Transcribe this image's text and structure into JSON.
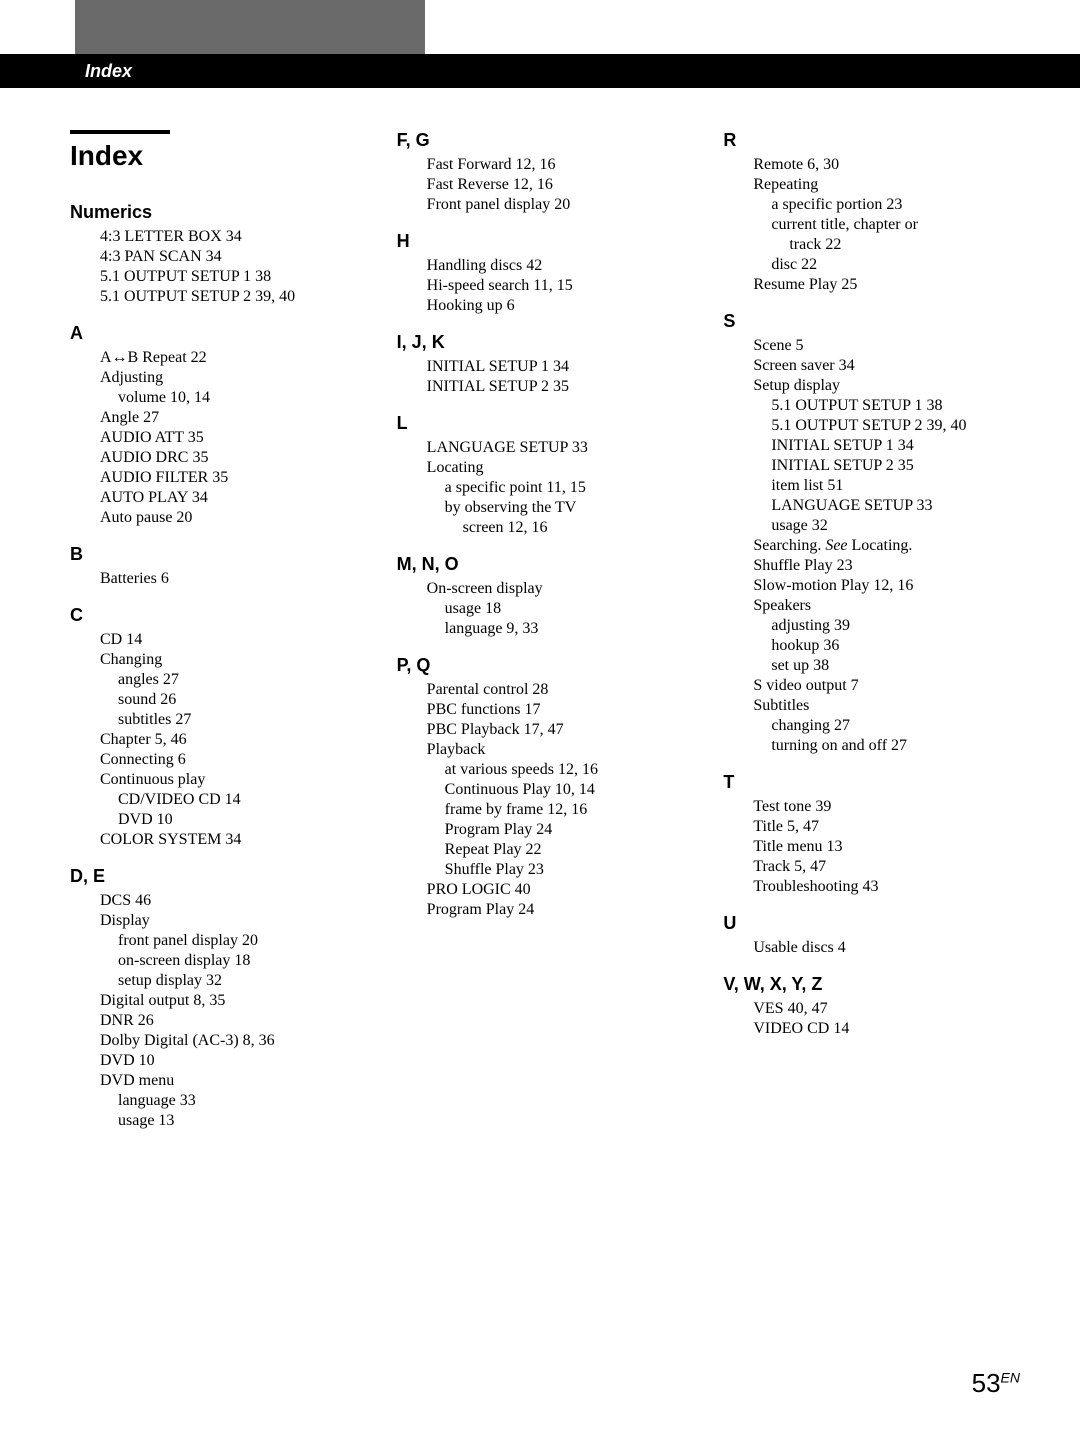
{
  "header_tab": "Index",
  "page_title": "Index",
  "page_number": "53",
  "page_number_suffix": "EN",
  "sections": {
    "Numerics": [
      {
        "t": "4:3 LETTER BOX    34",
        "l": 0
      },
      {
        "t": "4:3 PAN SCAN    34",
        "l": 0
      },
      {
        "t": "5.1 OUTPUT SETUP 1    38",
        "l": 0
      },
      {
        "t": "5.1 OUTPUT SETUP 2    39, 40",
        "l": 0
      }
    ],
    "A": [
      {
        "t": "A↔B Repeat    22",
        "l": 0
      },
      {
        "t": "Adjusting",
        "l": 0
      },
      {
        "t": "volume    10, 14",
        "l": 1
      },
      {
        "t": "Angle    27",
        "l": 0
      },
      {
        "t": "AUDIO ATT    35",
        "l": 0
      },
      {
        "t": "AUDIO DRC    35",
        "l": 0
      },
      {
        "t": "AUDIO FILTER    35",
        "l": 0
      },
      {
        "t": "AUTO PLAY    34",
        "l": 0
      },
      {
        "t": "Auto pause    20",
        "l": 0
      }
    ],
    "B": [
      {
        "t": "Batteries    6",
        "l": 0
      }
    ],
    "C": [
      {
        "t": "CD    14",
        "l": 0
      },
      {
        "t": "Changing",
        "l": 0
      },
      {
        "t": "angles    27",
        "l": 1
      },
      {
        "t": "sound    26",
        "l": 1
      },
      {
        "t": "subtitles    27",
        "l": 1
      },
      {
        "t": "Chapter    5, 46",
        "l": 0
      },
      {
        "t": "Connecting    6",
        "l": 0
      },
      {
        "t": "Continuous play",
        "l": 0
      },
      {
        "t": "CD/VIDEO CD    14",
        "l": 1
      },
      {
        "t": "DVD    10",
        "l": 1
      },
      {
        "t": "COLOR SYSTEM    34",
        "l": 0
      }
    ],
    "D, E": [
      {
        "t": "DCS    46",
        "l": 0
      },
      {
        "t": "Display",
        "l": 0
      },
      {
        "t": "front panel display    20",
        "l": 1
      },
      {
        "t": "on-screen display    18",
        "l": 1
      },
      {
        "t": "setup display    32",
        "l": 1
      },
      {
        "t": "Digital output    8, 35",
        "l": 0
      },
      {
        "t": "DNR    26",
        "l": 0
      },
      {
        "t": "Dolby Digital (AC-3)    8, 36",
        "l": 0
      },
      {
        "t": "DVD    10",
        "l": 0
      },
      {
        "t": "DVD menu",
        "l": 0
      },
      {
        "t": "language    33",
        "l": 1
      },
      {
        "t": "usage    13",
        "l": 1
      }
    ],
    "F, G": [
      {
        "t": "Fast Forward        12, 16",
        "l": 0
      },
      {
        "t": "Fast Reverse        12, 16",
        "l": 0
      },
      {
        "t": "Front panel display    20",
        "l": 0
      }
    ],
    "H": [
      {
        "t": "Handling discs    42",
        "l": 0
      },
      {
        "t": "Hi-speed search    11, 15",
        "l": 0
      },
      {
        "t": "Hooking up    6",
        "l": 0
      }
    ],
    "I, J, K": [
      {
        "t": "INITIAL SETUP 1    34",
        "l": 0
      },
      {
        "t": "INITIAL SETUP 2    35",
        "l": 0
      }
    ],
    "L": [
      {
        "t": "LANGUAGE SETUP    33",
        "l": 0
      },
      {
        "t": "Locating",
        "l": 0
      },
      {
        "t": "a specific point    11, 15",
        "l": 1
      },
      {
        "t": "by observing the TV",
        "l": 1
      },
      {
        "t": "screen    12, 16",
        "l": 2
      }
    ],
    "M, N, O": [
      {
        "t": "On-screen display",
        "l": 0
      },
      {
        "t": "usage    18",
        "l": 1
      },
      {
        "t": "language    9, 33",
        "l": 1
      }
    ],
    "P, Q": [
      {
        "t": "Parental control    28",
        "l": 0
      },
      {
        "t": "PBC functions    17",
        "l": 0
      },
      {
        "t": "PBC Playback    17, 47",
        "l": 0
      },
      {
        "t": "Playback",
        "l": 0
      },
      {
        "t": "at various speeds    12, 16",
        "l": 1
      },
      {
        "t": "Continuous Play    10, 14",
        "l": 1
      },
      {
        "t": "frame by frame    12, 16",
        "l": 1
      },
      {
        "t": "Program Play    24",
        "l": 1
      },
      {
        "t": "Repeat Play    22",
        "l": 1
      },
      {
        "t": "Shuffle Play    23",
        "l": 1
      },
      {
        "t": "PRO LOGIC    40",
        "l": 0
      },
      {
        "t": "Program Play    24",
        "l": 0
      }
    ],
    "R": [
      {
        "t": "Remote    6, 30",
        "l": 0
      },
      {
        "t": "Repeating",
        "l": 0
      },
      {
        "t": "a specific portion    23",
        "l": 1
      },
      {
        "t": "current title, chapter or",
        "l": 1
      },
      {
        "t": "track    22",
        "l": 2
      },
      {
        "t": "disc    22",
        "l": 1
      },
      {
        "t": "Resume Play    25",
        "l": 0
      }
    ],
    "S": [
      {
        "t": "Scene    5",
        "l": 0
      },
      {
        "t": "Screen saver    34",
        "l": 0
      },
      {
        "t": "Setup display",
        "l": 0
      },
      {
        "t": "5.1 OUTPUT SETUP 1    38",
        "l": 1
      },
      {
        "t": "5.1 OUTPUT SETUP 2    39, 40",
        "l": 1
      },
      {
        "t": "INITIAL SETUP 1    34",
        "l": 1
      },
      {
        "t": "INITIAL SETUP 2    35",
        "l": 1
      },
      {
        "t": "item list    51",
        "l": 1
      },
      {
        "t": "LANGUAGE SETUP    33",
        "l": 1
      },
      {
        "t": "usage    32",
        "l": 1
      },
      {
        "t": "Searching. See Locating.",
        "l": 0,
        "italic_see": true
      },
      {
        "t": "Shuffle Play    23",
        "l": 0
      },
      {
        "t": "Slow-motion Play    12, 16",
        "l": 0
      },
      {
        "t": "Speakers",
        "l": 0
      },
      {
        "t": "adjusting    39",
        "l": 1
      },
      {
        "t": "hookup    36",
        "l": 1
      },
      {
        "t": "set up    38",
        "l": 1
      },
      {
        "t": "S video output    7",
        "l": 0
      },
      {
        "t": "Subtitles",
        "l": 0
      },
      {
        "t": "changing    27",
        "l": 1
      },
      {
        "t": "turning on and off    27",
        "l": 1
      }
    ],
    "T": [
      {
        "t": "Test tone    39",
        "l": 0
      },
      {
        "t": "Title    5, 47",
        "l": 0
      },
      {
        "t": "Title menu    13",
        "l": 0
      },
      {
        "t": "Track    5, 47",
        "l": 0
      },
      {
        "t": "Troubleshooting    43",
        "l": 0
      }
    ],
    "U": [
      {
        "t": "Usable discs    4",
        "l": 0
      }
    ],
    "V, W, X, Y, Z": [
      {
        "t": "VES    40, 47",
        "l": 0
      },
      {
        "t": "VIDEO CD    14",
        "l": 0
      }
    ]
  },
  "column_layout": [
    {
      "has_title": true,
      "keys": [
        "Numerics",
        "A",
        "B",
        "C",
        "D, E"
      ]
    },
    {
      "has_title": false,
      "keys": [
        "F, G",
        "H",
        "I, J, K",
        "L",
        "M, N, O",
        "P, Q"
      ]
    },
    {
      "has_title": false,
      "keys": [
        "R",
        "S",
        "T",
        "U",
        "V, W, X, Y, Z"
      ]
    }
  ]
}
